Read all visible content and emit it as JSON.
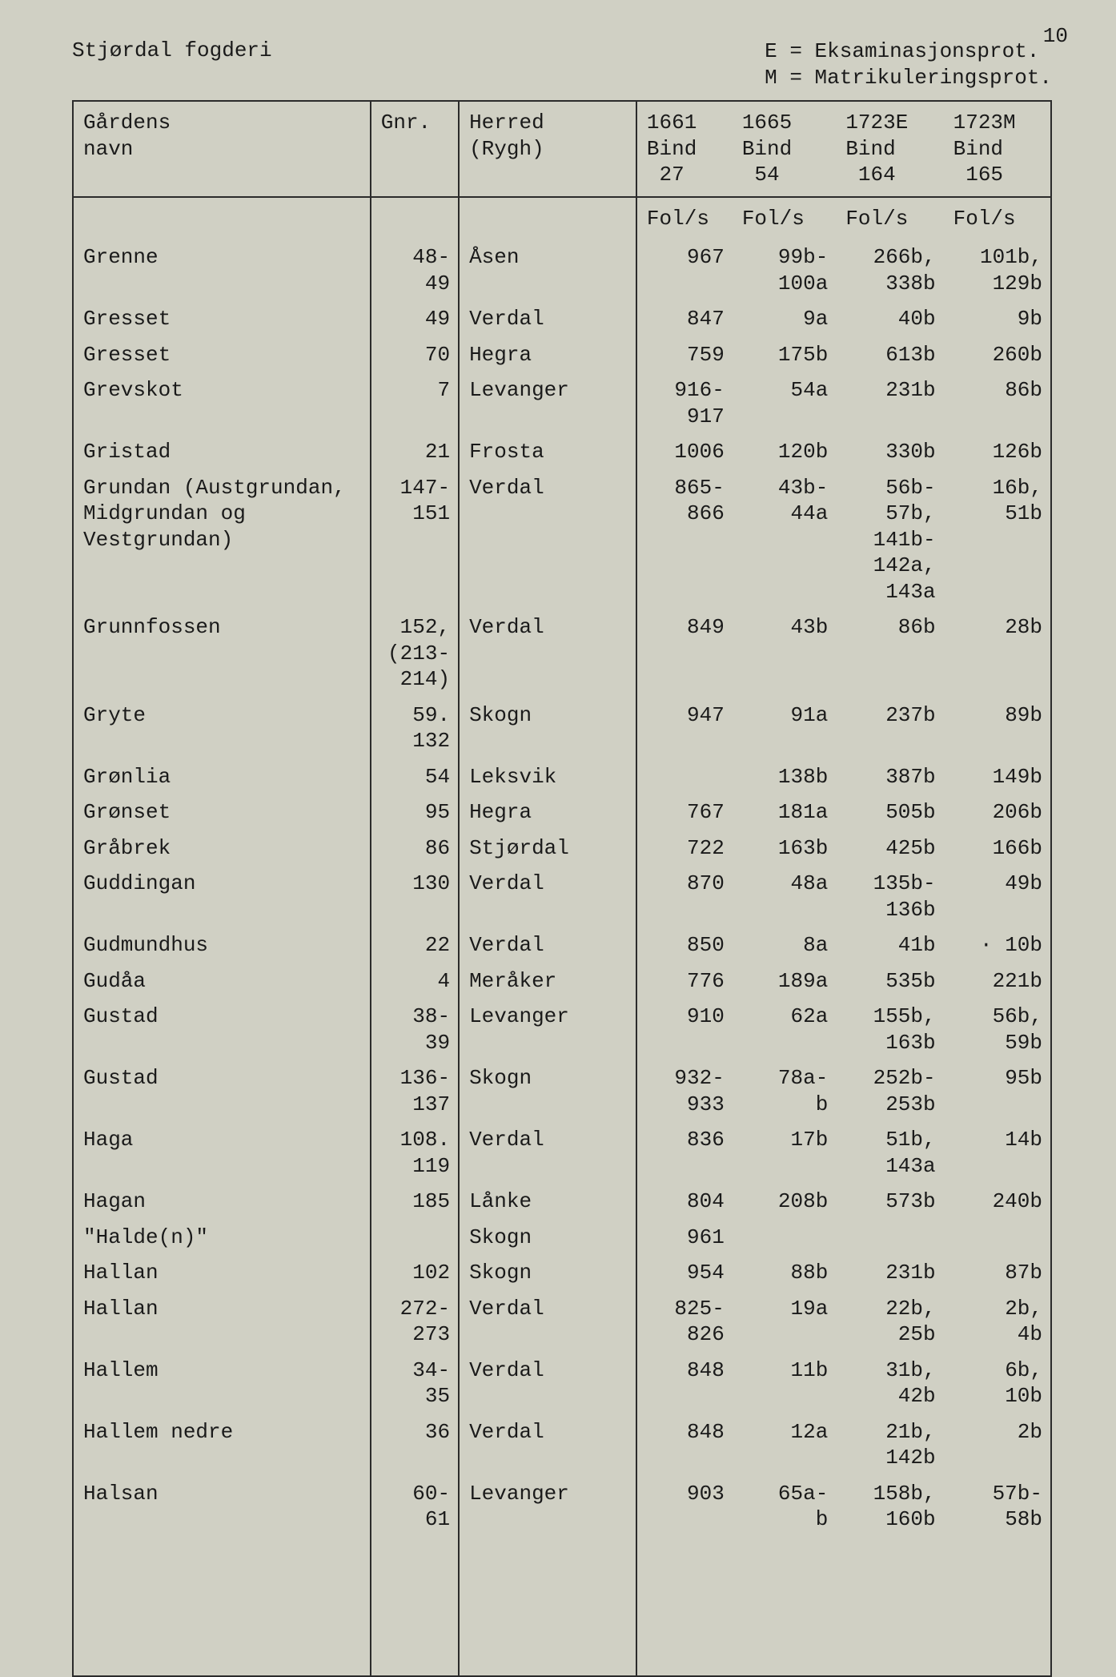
{
  "page_number": "10",
  "title": "Stjørdal fogderi",
  "legend": {
    "e": "E = Eksaminasjonsprot.",
    "m": "M = Matrikuleringsprot."
  },
  "columns": {
    "c0": {
      "l1": "Gårdens",
      "l2": "navn"
    },
    "c1": {
      "l1": "Gnr."
    },
    "c2": {
      "l1": "Herred",
      "l2": "(Rygh)"
    },
    "c3": {
      "l1": "1661",
      "l2": "Bind",
      "l3": "27",
      "sub": "Fol/s"
    },
    "c4": {
      "l1": "1665",
      "l2": "Bind",
      "l3": "54",
      "sub": "Fol/s"
    },
    "c5": {
      "l1": "1723E",
      "l2": "Bind",
      "l3": "164",
      "sub": "Fol/s"
    },
    "c6": {
      "l1": "1723M",
      "l2": "Bind",
      "l3": "165",
      "sub": "Fol/s"
    }
  },
  "rows": [
    {
      "name": "Grenne",
      "gnr": "48-\n49",
      "herred": "Åsen",
      "b1661": "967",
      "b1665": "99b-\n100a",
      "b1723e": "266b,\n338b",
      "b1723m": "101b,\n129b"
    },
    {
      "name": "Gresset",
      "gnr": "49",
      "herred": "Verdal",
      "b1661": "847",
      "b1665": "9a",
      "b1723e": "40b",
      "b1723m": "9b"
    },
    {
      "name": "Gresset",
      "gnr": "70",
      "herred": "Hegra",
      "b1661": "759",
      "b1665": "175b",
      "b1723e": "613b",
      "b1723m": "260b"
    },
    {
      "name": "Grevskot",
      "gnr": "7",
      "herred": "Levanger",
      "b1661": "916-\n917",
      "b1665": "54a",
      "b1723e": "231b",
      "b1723m": "86b"
    },
    {
      "name": "Gristad",
      "gnr": "21",
      "herred": "Frosta",
      "b1661": "1006",
      "b1665": "120b",
      "b1723e": "330b",
      "b1723m": "126b"
    },
    {
      "name": "Grundan (Austgrundan,\nMidgrundan og\nVestgrundan)",
      "gnr": "147-\n151",
      "herred": "Verdal",
      "b1661": "865-\n866",
      "b1665": "43b-\n44a",
      "b1723e": "56b-\n57b,\n141b-\n142a,\n143a",
      "b1723m": "16b,\n51b"
    },
    {
      "name": "Grunnfossen",
      "gnr": "152,\n(213-\n214)",
      "herred": "Verdal",
      "b1661": "849",
      "b1665": "43b",
      "b1723e": "86b",
      "b1723m": "28b"
    },
    {
      "name": "Gryte",
      "gnr": "59.\n132",
      "herred": "Skogn",
      "b1661": "947",
      "b1665": "91a",
      "b1723e": "237b",
      "b1723m": "89b"
    },
    {
      "name": "Grønlia",
      "gnr": "54",
      "herred": "Leksvik",
      "b1661": "",
      "b1665": "138b",
      "b1723e": "387b",
      "b1723m": "149b"
    },
    {
      "name": "Grønset",
      "gnr": "95",
      "herred": "Hegra",
      "b1661": "767",
      "b1665": "181a",
      "b1723e": "505b",
      "b1723m": "206b"
    },
    {
      "name": "Gråbrek",
      "gnr": "86",
      "herred": "Stjørdal",
      "b1661": "722",
      "b1665": "163b",
      "b1723e": "425b",
      "b1723m": "166b"
    },
    {
      "name": "Guddingan",
      "gnr": "130",
      "herred": "Verdal",
      "b1661": "870",
      "b1665": "48a",
      "b1723e": "135b-\n136b",
      "b1723m": "49b"
    },
    {
      "name": "Gudmundhus",
      "gnr": "22",
      "herred": "Verdal",
      "b1661": "850",
      "b1665": "8a",
      "b1723e": "41b",
      "b1723m": "· 10b"
    },
    {
      "name": "Gudåa",
      "gnr": "4",
      "herred": "Meråker",
      "b1661": "776",
      "b1665": "189a",
      "b1723e": "535b",
      "b1723m": "221b"
    },
    {
      "name": "Gustad",
      "gnr": "38-\n39",
      "herred": "Levanger",
      "b1661": "910",
      "b1665": "62a",
      "b1723e": "155b,\n163b",
      "b1723m": "56b,\n59b"
    },
    {
      "name": "Gustad",
      "gnr": "136-\n137",
      "herred": "Skogn",
      "b1661": "932-\n933",
      "b1665": "78a-\nb",
      "b1723e": "252b-\n253b",
      "b1723m": "95b"
    },
    {
      "name": "Haga",
      "gnr": "108.\n119",
      "herred": "Verdal",
      "b1661": "836",
      "b1665": "17b",
      "b1723e": "51b,\n143a",
      "b1723m": "14b"
    },
    {
      "name": "Hagan",
      "gnr": "185",
      "herred": "Lånke",
      "b1661": "804",
      "b1665": "208b",
      "b1723e": "573b",
      "b1723m": "240b"
    },
    {
      "name": "\"Halde(n)\"",
      "gnr": "",
      "herred": "Skogn",
      "b1661": "961",
      "b1665": "",
      "b1723e": "",
      "b1723m": ""
    },
    {
      "name": "Hallan",
      "gnr": "102",
      "herred": "Skogn",
      "b1661": "954",
      "b1665": "88b",
      "b1723e": "231b",
      "b1723m": "87b"
    },
    {
      "name": "Hallan",
      "gnr": "272-\n273",
      "herred": "Verdal",
      "b1661": "825-\n826",
      "b1665": "19a",
      "b1723e": "22b,\n25b",
      "b1723m": "2b,\n4b"
    },
    {
      "name": "Hallem",
      "gnr": "34-\n35",
      "herred": "Verdal",
      "b1661": "848",
      "b1665": "11b",
      "b1723e": "31b,\n42b",
      "b1723m": "6b,\n10b"
    },
    {
      "name": "Hallem nedre",
      "gnr": "36",
      "herred": "Verdal",
      "b1661": "848",
      "b1665": "12a",
      "b1723e": "21b,\n142b",
      "b1723m": "2b"
    },
    {
      "name": "Halsan",
      "gnr": "60-\n61",
      "herred": "Levanger",
      "b1661": "903",
      "b1665": "65a-\nb",
      "b1723e": "158b,\n160b",
      "b1723m": "57b-\n58b"
    }
  ]
}
